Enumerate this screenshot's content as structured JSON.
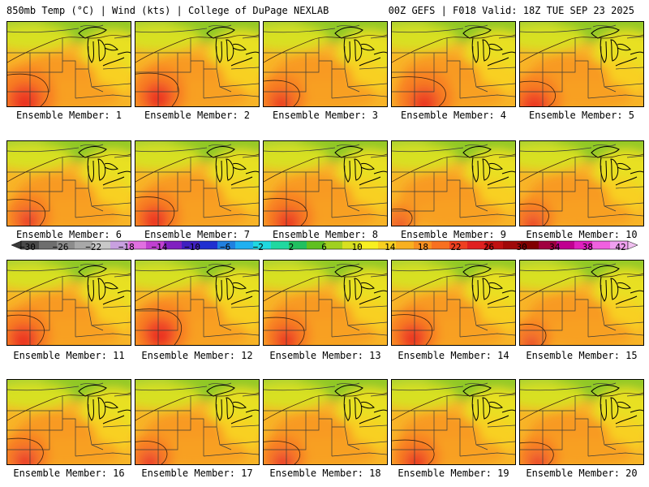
{
  "header": {
    "left": "850mb Temp (°C) | Wind (kts) | College of DuPage NEXLAB",
    "right": "00Z GEFS | F018 Valid: 18Z TUE SEP 23 2025"
  },
  "colorbar": {
    "labels": [
      "−30",
      "−26",
      "−22",
      "−18",
      "−14",
      "−10",
      "−6",
      "−2",
      "2",
      "6",
      "10",
      "14",
      "18",
      "22",
      "26",
      "30",
      "34",
      "38",
      "42"
    ],
    "colors": [
      "#4a4a4a",
      "#6e6e6e",
      "#8c8c8c",
      "#a8a8a8",
      "#c8c8c8",
      "#c8a0e0",
      "#e070e0",
      "#c040d0",
      "#8020c0",
      "#4020c0",
      "#2030d0",
      "#2080e0",
      "#20b0f0",
      "#20d8e0",
      "#20d8a0",
      "#20c060",
      "#60c020",
      "#a0d020",
      "#d8e020",
      "#f8f020",
      "#f8d020",
      "#f8b020",
      "#f89020",
      "#f87020",
      "#f04020",
      "#e02020",
      "#c01010",
      "#a00808",
      "#800000",
      "#a00040",
      "#c00090",
      "#e020c0",
      "#f060e0",
      "#f0a0f0"
    ]
  },
  "panels": [
    {
      "caption": "Ensemble Member: 1"
    },
    {
      "caption": "Ensemble Member: 2"
    },
    {
      "caption": "Ensemble Member: 3"
    },
    {
      "caption": "Ensemble Member: 4"
    },
    {
      "caption": "Ensemble Member: 5"
    },
    {
      "caption": "Ensemble Member: 6"
    },
    {
      "caption": "Ensemble Member: 7"
    },
    {
      "caption": "Ensemble Member: 8"
    },
    {
      "caption": "Ensemble Member: 9"
    },
    {
      "caption": "Ensemble Member: 10"
    },
    {
      "caption": "Ensemble Member: 11"
    },
    {
      "caption": "Ensemble Member: 12"
    },
    {
      "caption": "Ensemble Member: 13"
    },
    {
      "caption": "Ensemble Member: 14"
    },
    {
      "caption": "Ensemble Member: 15"
    },
    {
      "caption": "Ensemble Member: 16"
    },
    {
      "caption": "Ensemble Member: 17"
    },
    {
      "caption": "Ensemble Member: 18"
    },
    {
      "caption": "Ensemble Member: 19"
    },
    {
      "caption": "Ensemble Member: 20"
    }
  ]
}
